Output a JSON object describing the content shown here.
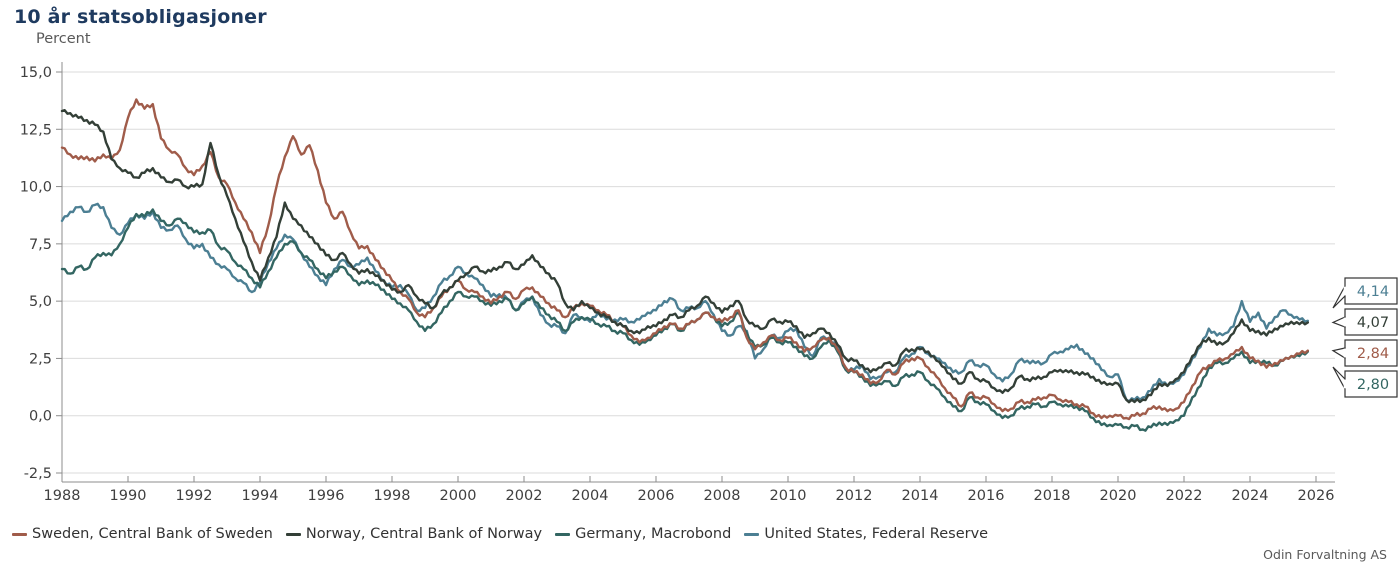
{
  "header": {
    "title": "10 år statsobligasjoner",
    "y_axis_title": "Percent"
  },
  "footer": {
    "source": "Odin Forvaltning AS"
  },
  "chart_data": {
    "type": "line",
    "title": "10 år statsobligasjoner",
    "ylabel": "Percent",
    "xlabel": "",
    "grid": "horizontal",
    "legend_position": "bottom",
    "xlim": [
      1988,
      2026.4
    ],
    "ylim": [
      -2.5,
      15.0
    ],
    "x_start": 1988,
    "x_step": 0.25,
    "x_ticks": [
      1988,
      1990,
      1992,
      1994,
      1996,
      1998,
      2000,
      2002,
      2004,
      2006,
      2008,
      2010,
      2012,
      2014,
      2016,
      2018,
      2020,
      2022,
      2024,
      2026
    ],
    "x_tick_labels": [
      "1988",
      "1990",
      "1992",
      "1994",
      "1996",
      "1998",
      "2000",
      "2002",
      "2004",
      "2006",
      "2008",
      "2010",
      "2012",
      "2014",
      "2016",
      "2018",
      "2020",
      "2022",
      "2024",
      "2026"
    ],
    "y_ticks": [
      15.0,
      12.5,
      10.0,
      7.5,
      5.0,
      2.5,
      0.0,
      -2.5
    ],
    "y_tick_labels": [
      "15,0",
      "12,5",
      "10,0",
      "7,5",
      "5,0",
      "2,5",
      "0,0",
      "-2,5"
    ],
    "colors": {
      "sweden": "#A05C4A",
      "norway": "#333F37",
      "germany": "#336662",
      "us": "#4C7F93",
      "gridline": "#DBDBDB",
      "axis": "#8C8C8C",
      "tick_label": "#404040",
      "title": "#1E3A5F",
      "callout_border": "#333333"
    },
    "series": [
      {
        "key": "sweden",
        "name": "Sweden, Central Bank of Sweden",
        "color": "#A05C4A",
        "end_label": "2,84",
        "values": [
          11.7,
          11.4,
          11.2,
          11.3,
          11.1,
          11.4,
          11.2,
          11.6,
          13.0,
          13.8,
          13.4,
          13.6,
          12.1,
          11.6,
          11.4,
          10.8,
          10.5,
          10.9,
          11.5,
          10.4,
          10.1,
          9.3,
          8.6,
          8.0,
          7.1,
          8.3,
          10.0,
          11.3,
          12.2,
          11.4,
          11.8,
          10.7,
          9.3,
          8.6,
          8.9,
          8.0,
          7.3,
          7.4,
          6.8,
          6.4,
          5.9,
          5.4,
          5.1,
          4.5,
          4.3,
          4.7,
          5.2,
          5.6,
          5.9,
          5.5,
          5.4,
          5.2,
          4.9,
          5.2,
          5.4,
          5.1,
          5.5,
          5.6,
          5.2,
          4.9,
          4.6,
          4.3,
          4.7,
          4.9,
          4.8,
          4.6,
          4.4,
          4.1,
          3.9,
          3.5,
          3.2,
          3.4,
          3.6,
          3.9,
          4.0,
          3.8,
          4.0,
          4.2,
          4.5,
          4.3,
          4.1,
          4.3,
          4.6,
          3.4,
          2.9,
          3.2,
          3.5,
          3.3,
          3.4,
          3.2,
          2.8,
          3.0,
          3.3,
          3.4,
          2.9,
          2.1,
          1.9,
          1.8,
          1.4,
          1.5,
          2.0,
          1.8,
          2.3,
          2.5,
          2.5,
          2.1,
          1.7,
          1.2,
          0.8,
          0.4,
          1.0,
          0.8,
          0.8,
          0.5,
          0.2,
          0.3,
          0.6,
          0.6,
          0.7,
          0.8,
          0.9,
          0.7,
          0.6,
          0.5,
          0.4,
          0.1,
          -0.1,
          0.0,
          0.0,
          -0.1,
          0.0,
          0.1,
          0.3,
          0.4,
          0.2,
          0.3,
          0.6,
          1.3,
          1.9,
          2.2,
          2.4,
          2.5,
          2.7,
          3.0,
          2.5,
          2.4,
          2.1,
          2.3,
          2.4,
          2.6,
          2.7,
          2.84
        ]
      },
      {
        "key": "norway",
        "name": "Norway, Central Bank of Norway",
        "color": "#333F37",
        "end_label": "4,07",
        "values": [
          13.3,
          13.2,
          13.0,
          12.9,
          12.7,
          12.4,
          11.2,
          10.8,
          10.6,
          10.4,
          10.6,
          10.8,
          10.4,
          10.2,
          10.3,
          10.0,
          10.0,
          10.1,
          11.9,
          10.5,
          9.6,
          8.6,
          7.6,
          6.7,
          5.9,
          6.9,
          7.8,
          9.3,
          8.6,
          8.3,
          7.8,
          7.5,
          7.0,
          6.8,
          7.1,
          6.6,
          6.2,
          6.4,
          6.1,
          5.9,
          5.5,
          5.4,
          5.7,
          5.2,
          4.9,
          4.7,
          5.3,
          5.6,
          5.9,
          6.2,
          6.5,
          6.3,
          6.3,
          6.5,
          6.7,
          6.4,
          6.6,
          7.0,
          6.5,
          6.2,
          5.8,
          4.9,
          4.6,
          5.0,
          4.7,
          4.5,
          4.3,
          4.1,
          3.9,
          3.7,
          3.6,
          3.9,
          3.9,
          4.2,
          4.4,
          4.3,
          4.6,
          4.8,
          5.2,
          4.9,
          4.5,
          4.8,
          5.0,
          4.2,
          3.9,
          3.8,
          4.2,
          4.1,
          4.1,
          3.9,
          3.4,
          3.6,
          3.8,
          3.6,
          3.1,
          2.5,
          2.4,
          2.2,
          1.9,
          2.1,
          2.3,
          2.2,
          2.8,
          2.9,
          2.9,
          2.8,
          2.4,
          2.1,
          1.6,
          1.4,
          1.9,
          1.6,
          1.5,
          1.2,
          1.0,
          1.2,
          1.7,
          1.6,
          1.6,
          1.7,
          1.9,
          2.0,
          1.9,
          1.9,
          1.8,
          1.7,
          1.4,
          1.4,
          1.4,
          0.7,
          0.6,
          0.7,
          0.9,
          1.4,
          1.3,
          1.6,
          1.9,
          2.6,
          3.1,
          3.4,
          3.1,
          3.2,
          3.6,
          4.2,
          3.7,
          3.7,
          3.5,
          3.8,
          3.9,
          4.1,
          4.0,
          4.07
        ]
      },
      {
        "key": "germany",
        "name": "Germany, Macrobond",
        "color": "#336662",
        "end_label": "2,80",
        "values": [
          6.4,
          6.2,
          6.5,
          6.4,
          6.9,
          7.1,
          7.0,
          7.5,
          8.2,
          8.8,
          8.7,
          9.0,
          8.5,
          8.3,
          8.6,
          8.4,
          8.0,
          8.0,
          8.1,
          7.4,
          7.2,
          6.7,
          6.4,
          6.0,
          5.6,
          6.3,
          6.9,
          7.5,
          7.6,
          7.1,
          6.8,
          6.4,
          6.0,
          6.3,
          6.5,
          6.1,
          5.7,
          5.9,
          5.7,
          5.5,
          5.1,
          4.9,
          4.6,
          4.1,
          3.7,
          4.0,
          4.5,
          5.0,
          5.4,
          5.2,
          5.2,
          5.0,
          4.8,
          5.0,
          5.1,
          4.6,
          4.9,
          5.2,
          4.7,
          4.4,
          4.1,
          3.7,
          4.1,
          4.3,
          4.2,
          4.0,
          3.9,
          3.7,
          3.6,
          3.3,
          3.1,
          3.3,
          3.5,
          3.8,
          4.0,
          3.7,
          4.0,
          4.2,
          4.5,
          4.3,
          3.9,
          4.1,
          4.5,
          3.6,
          3.0,
          3.1,
          3.4,
          3.2,
          3.2,
          3.0,
          2.6,
          2.5,
          3.0,
          3.3,
          2.8,
          2.0,
          1.9,
          1.7,
          1.3,
          1.4,
          1.5,
          1.3,
          1.7,
          1.8,
          1.9,
          1.5,
          1.2,
          0.8,
          0.4,
          0.2,
          0.8,
          0.6,
          0.5,
          0.2,
          -0.1,
          0.0,
          0.3,
          0.4,
          0.5,
          0.4,
          0.6,
          0.5,
          0.4,
          0.4,
          0.2,
          -0.1,
          -0.4,
          -0.4,
          -0.4,
          -0.5,
          -0.45,
          -0.6,
          -0.5,
          -0.3,
          -0.4,
          -0.2,
          0.0,
          0.8,
          1.3,
          2.1,
          2.3,
          2.3,
          2.5,
          2.8,
          2.3,
          2.4,
          2.3,
          2.2,
          2.4,
          2.6,
          2.6,
          2.8
        ]
      },
      {
        "key": "us",
        "name": "United States, Federal Reserve",
        "color": "#4C7F93",
        "end_label": "4,14",
        "values": [
          8.5,
          8.9,
          9.1,
          8.9,
          9.2,
          9.1,
          8.2,
          7.9,
          8.4,
          8.8,
          8.6,
          8.9,
          8.2,
          8.1,
          8.3,
          7.7,
          7.3,
          7.5,
          6.9,
          6.6,
          6.4,
          6.0,
          5.8,
          5.4,
          5.8,
          6.7,
          7.3,
          7.9,
          7.7,
          7.1,
          6.5,
          6.1,
          5.7,
          6.4,
          6.8,
          6.5,
          6.6,
          6.9,
          6.3,
          5.9,
          5.6,
          5.7,
          5.3,
          4.6,
          4.7,
          5.2,
          5.8,
          6.1,
          6.5,
          6.2,
          6.0,
          5.7,
          5.2,
          5.3,
          5.1,
          4.6,
          5.0,
          5.2,
          4.4,
          4.0,
          3.9,
          3.6,
          4.4,
          4.3,
          4.1,
          4.5,
          4.2,
          4.2,
          4.2,
          4.1,
          4.2,
          4.5,
          4.6,
          5.0,
          5.1,
          4.6,
          4.7,
          4.7,
          5.0,
          4.4,
          3.7,
          3.5,
          3.9,
          3.7,
          2.5,
          2.9,
          3.5,
          3.4,
          3.7,
          3.8,
          3.0,
          2.6,
          3.4,
          3.4,
          3.0,
          2.0,
          2.0,
          2.2,
          1.6,
          1.7,
          1.9,
          1.9,
          2.5,
          2.7,
          3.0,
          2.7,
          2.5,
          2.3,
          1.9,
          1.9,
          2.4,
          2.2,
          2.2,
          1.8,
          1.5,
          1.8,
          2.4,
          2.4,
          2.3,
          2.3,
          2.7,
          2.8,
          2.9,
          3.1,
          2.7,
          2.5,
          2.0,
          1.7,
          1.8,
          0.7,
          0.7,
          0.8,
          1.1,
          1.6,
          1.3,
          1.5,
          1.8,
          2.5,
          3.0,
          3.8,
          3.5,
          3.6,
          3.9,
          5.0,
          4.1,
          4.5,
          3.8,
          4.3,
          4.6,
          4.4,
          4.2,
          4.14
        ]
      }
    ],
    "z_order": [
      "us",
      "germany",
      "sweden",
      "norway"
    ],
    "callouts": [
      {
        "key": "us",
        "label": "4,14",
        "value": 4.14,
        "color": "#4C7F93"
      },
      {
        "key": "norway",
        "label": "4,07",
        "value": 4.07,
        "color": "#333F37"
      },
      {
        "key": "sweden",
        "label": "2,84",
        "value": 2.84,
        "color": "#A05C4A"
      },
      {
        "key": "germany",
        "label": "2,80",
        "value": 2.8,
        "color": "#336662"
      }
    ]
  }
}
